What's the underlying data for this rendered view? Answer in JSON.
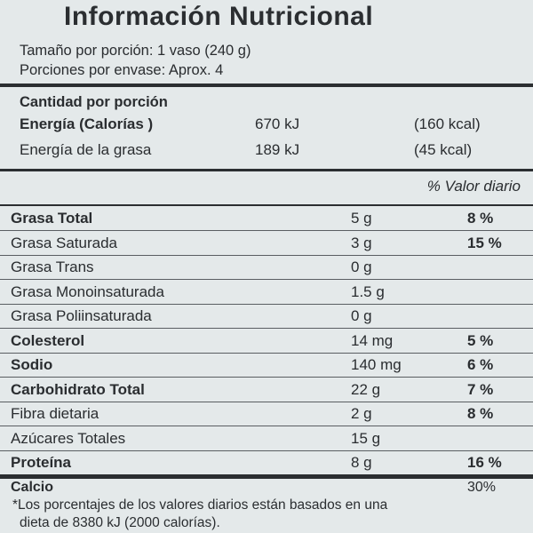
{
  "label": {
    "title": "Información Nutricional",
    "serving_size": "Tamaño por porción: 1 vaso (240 g)",
    "servings_per_container": "Porciones por envase: Aprox. 4",
    "amount_per_serving": "Cantidad por porción",
    "energy": {
      "label": "Energía  (Calorías )",
      "kj": "670 kJ",
      "kcal": "(160 kcal)"
    },
    "fat_energy": {
      "label": "Energía de la grasa",
      "kj": "189 kJ",
      "kcal": "(45 kcal)"
    },
    "daily_value_header": "% Valor diario",
    "nutrients": [
      {
        "name": "Grasa Total",
        "amount": "5 g",
        "dv": "8 %",
        "bold": true
      },
      {
        "name": "Grasa Saturada",
        "amount": "3 g",
        "dv": "15 %",
        "bold": false
      },
      {
        "name": "Grasa Trans",
        "amount": "0 g",
        "dv": "",
        "bold": false
      },
      {
        "name": "Grasa Monoinsaturada",
        "amount": "1.5 g",
        "dv": "",
        "bold": false
      },
      {
        "name": "Grasa Poliinsaturada",
        "amount": "0 g",
        "dv": "",
        "bold": false
      },
      {
        "name": "Colesterol",
        "amount": "14 mg",
        "dv": "5 %",
        "bold": true
      },
      {
        "name": "Sodio",
        "amount": "140 mg",
        "dv": "6 %",
        "bold": true
      },
      {
        "name": "Carbohidrato Total",
        "amount": "22 g",
        "dv": "7 %",
        "bold": true
      },
      {
        "name": "Fibra dietaria",
        "amount": "2 g",
        "dv": "8 %",
        "bold": false
      },
      {
        "name": "Azúcares Totales",
        "amount": "15 g",
        "dv": "",
        "bold": false
      },
      {
        "name": "Proteína",
        "amount": "8 g",
        "dv": "16 %",
        "bold": true
      }
    ],
    "calcium": {
      "name": "Calcio",
      "dv": "30%"
    },
    "footnote_line1": "*Los porcentajes de los valores diarios están basados en una",
    "footnote_line2": "dieta de 8380 kJ (2000 calorías)."
  }
}
